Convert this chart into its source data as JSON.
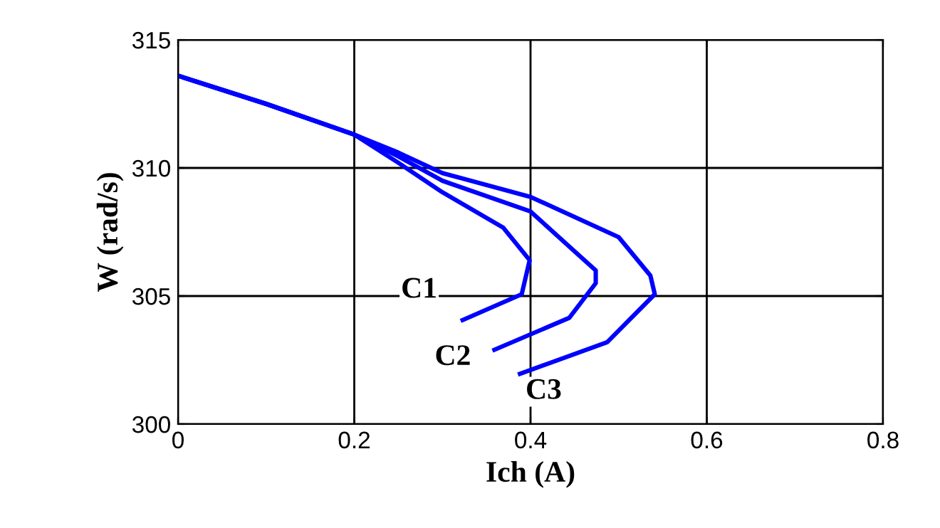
{
  "chart_data": {
    "type": "line",
    "xlabel": "Ich (A)",
    "ylabel": "W (rad/s)",
    "xlim": [
      0,
      0.8
    ],
    "ylim": [
      300,
      315
    ],
    "xticks": [
      0,
      0.2,
      0.4,
      0.6,
      0.8
    ],
    "yticks": [
      300,
      305,
      310,
      315
    ],
    "grid": true,
    "marker": "none",
    "line_style": "solid",
    "series": [
      {
        "name": "C1",
        "color": "#0000ff",
        "x": [
          0,
          0.1,
          0.2,
          0.25,
          0.3,
          0.369,
          0.399,
          0.39,
          0.323
        ],
        "values": [
          313.6,
          312.5,
          311.3,
          310.2,
          309.05,
          307.67,
          306.4,
          305.07,
          304.06
        ]
      },
      {
        "name": "C2",
        "color": "#0000ff",
        "x": [
          0,
          0.1,
          0.2,
          0.25,
          0.3,
          0.4,
          0.45,
          0.474,
          0.474,
          0.444,
          0.359
        ],
        "values": [
          313.6,
          312.5,
          311.3,
          310.45,
          309.5,
          308.3,
          306.74,
          306.0,
          305.5,
          304.15,
          302.9
        ]
      },
      {
        "name": "C3",
        "color": "#0000ff",
        "x": [
          0,
          0.1,
          0.2,
          0.25,
          0.3,
          0.4,
          0.5,
          0.536,
          0.541,
          0.487,
          0.388
        ],
        "values": [
          313.6,
          312.5,
          311.3,
          310.6,
          309.8,
          308.87,
          307.3,
          305.8,
          305.07,
          303.2,
          301.96
        ]
      }
    ]
  }
}
